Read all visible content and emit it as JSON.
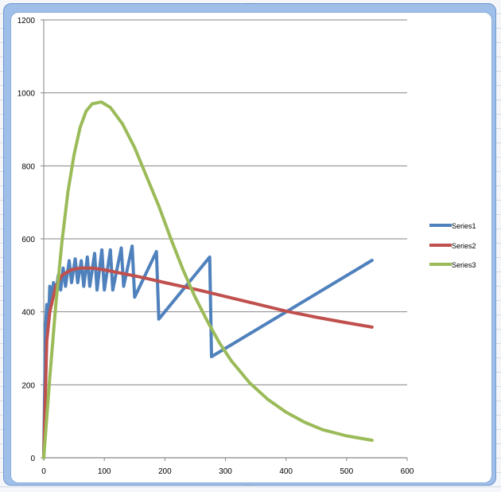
{
  "chart_data": {
    "type": "scatter",
    "title": "",
    "xlabel": "",
    "ylabel": "",
    "xlim": [
      0,
      600
    ],
    "ylim": [
      0,
      1200
    ],
    "x_ticks": [
      "0",
      "100",
      "200",
      "300",
      "400",
      "500",
      "600"
    ],
    "y_ticks": [
      "0",
      "200",
      "400",
      "600",
      "800",
      "1000",
      "1200"
    ],
    "grid": {
      "horizontal": true,
      "vertical": false
    },
    "legend": {
      "position": "right",
      "entries": [
        "Series1",
        "Series2",
        "Series3"
      ]
    },
    "series": [
      {
        "name": "Series1",
        "color": "#4f81bd",
        "points": [
          [
            0,
            0
          ],
          [
            3,
            360
          ],
          [
            5,
            420
          ],
          [
            8,
            380
          ],
          [
            10,
            470
          ],
          [
            13,
            420
          ],
          [
            16,
            480
          ],
          [
            20,
            450
          ],
          [
            24,
            500
          ],
          [
            28,
            460
          ],
          [
            32,
            520
          ],
          [
            36,
            470
          ],
          [
            42,
            540
          ],
          [
            46,
            480
          ],
          [
            52,
            545
          ],
          [
            56,
            480
          ],
          [
            62,
            540
          ],
          [
            66,
            470
          ],
          [
            72,
            550
          ],
          [
            76,
            470
          ],
          [
            84,
            560
          ],
          [
            88,
            460
          ],
          [
            96,
            570
          ],
          [
            100,
            460
          ],
          [
            110,
            570
          ],
          [
            114,
            460
          ],
          [
            128,
            575
          ],
          [
            132,
            470
          ],
          [
            146,
            580
          ],
          [
            150,
            440
          ],
          [
            186,
            565
          ],
          [
            190,
            380
          ],
          [
            274,
            550
          ],
          [
            277,
            277
          ],
          [
            542,
            541
          ]
        ]
      },
      {
        "name": "Series2",
        "color": "#c0504d",
        "points": [
          [
            0,
            0
          ],
          [
            5,
            320
          ],
          [
            10,
            400
          ],
          [
            20,
            470
          ],
          [
            30,
            500
          ],
          [
            45,
            515
          ],
          [
            60,
            520
          ],
          [
            80,
            520
          ],
          [
            100,
            515
          ],
          [
            130,
            505
          ],
          [
            160,
            495
          ],
          [
            200,
            480
          ],
          [
            250,
            462
          ],
          [
            300,
            442
          ],
          [
            350,
            422
          ],
          [
            400,
            402
          ],
          [
            450,
            385
          ],
          [
            500,
            370
          ],
          [
            542,
            358
          ]
        ]
      },
      {
        "name": "Series3",
        "color": "#9bbb59",
        "points": [
          [
            0,
            0
          ],
          [
            10,
            220
          ],
          [
            20,
            420
          ],
          [
            30,
            590
          ],
          [
            40,
            730
          ],
          [
            50,
            830
          ],
          [
            60,
            905
          ],
          [
            70,
            950
          ],
          [
            80,
            970
          ],
          [
            95,
            975
          ],
          [
            110,
            960
          ],
          [
            130,
            915
          ],
          [
            150,
            850
          ],
          [
            170,
            770
          ],
          [
            190,
            690
          ],
          [
            210,
            600
          ],
          [
            230,
            515
          ],
          [
            250,
            440
          ],
          [
            270,
            375
          ],
          [
            290,
            315
          ],
          [
            310,
            265
          ],
          [
            340,
            205
          ],
          [
            370,
            160
          ],
          [
            400,
            125
          ],
          [
            430,
            98
          ],
          [
            460,
            77
          ],
          [
            500,
            60
          ],
          [
            542,
            48
          ]
        ]
      }
    ]
  },
  "legend": {
    "series1": "Series1",
    "series2": "Series2",
    "series3": "Series3"
  },
  "axes": {
    "x": [
      "0",
      "100",
      "200",
      "300",
      "400",
      "500",
      "600"
    ],
    "y": [
      "0",
      "200",
      "400",
      "600",
      "800",
      "1000",
      "1200"
    ]
  }
}
